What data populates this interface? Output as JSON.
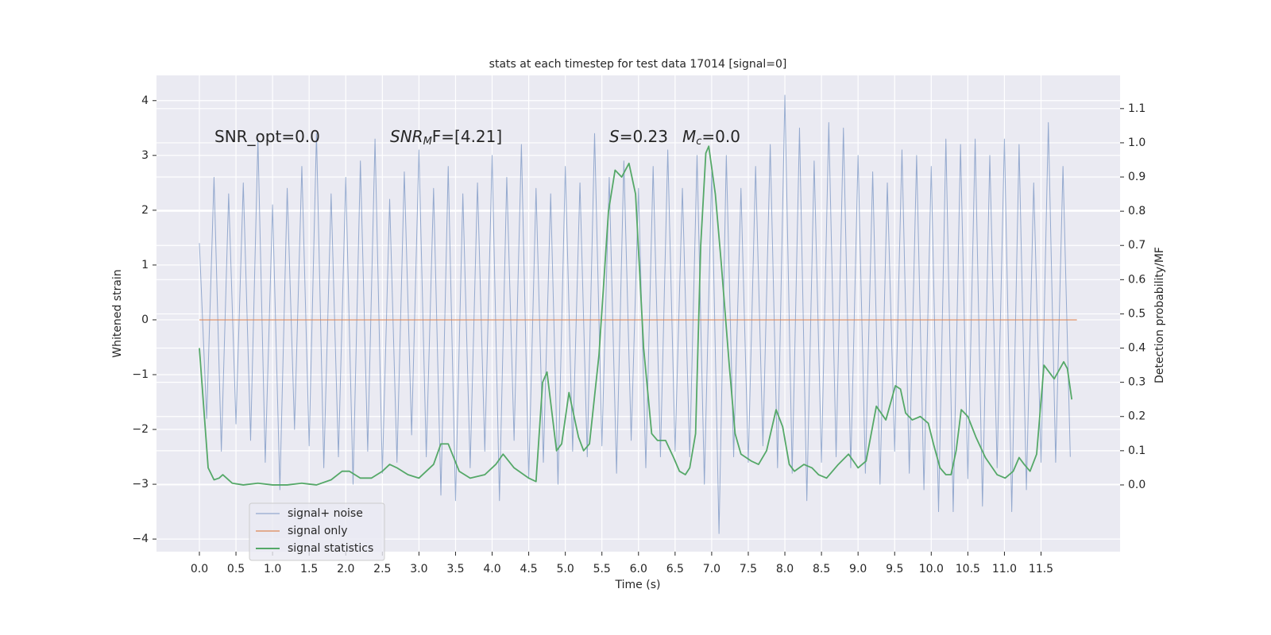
{
  "chart_data": {
    "type": "line",
    "title": "stats at each timestep for test data 17014 [signal=0]",
    "xlabel": "Time (s)",
    "ylabel": "Whitened strain",
    "y2label": "Detection probability/MF",
    "annotations": [
      {
        "rest": "SNR_opt=0.0"
      },
      {
        "base": "SNR",
        "sub": "M",
        "rest": "F=[4.21]"
      },
      {
        "base": "S",
        "rest": "=0.23"
      },
      {
        "base": "M",
        "sub": "c",
        "rest": "=0.0"
      }
    ],
    "grid": true,
    "legend": "lower left",
    "xlim": [
      -0.586,
      12.58
    ],
    "ylim": [
      -4.23,
      4.46
    ],
    "y2lim": [
      -0.195,
      1.197
    ],
    "xticks": [
      {
        "value": 0,
        "label": "0.0"
      },
      0.5,
      {
        "value": 1,
        "label": "1.0"
      },
      1.5,
      {
        "value": 2,
        "label": "2.0"
      },
      2.5,
      {
        "value": 3,
        "label": "3.0"
      },
      3.5,
      {
        "value": 4,
        "label": "4.0"
      },
      4.5,
      {
        "value": 5,
        "label": "5.0"
      },
      5.5,
      {
        "value": 6,
        "label": "6.0"
      },
      6.5,
      {
        "value": 7,
        "label": "7.0"
      },
      7.5,
      {
        "value": 8,
        "label": "8.0"
      },
      8.5,
      {
        "value": 9,
        "label": "9.0"
      },
      9.5,
      {
        "value": 10,
        "label": "10.0"
      },
      10.5,
      {
        "value": 11,
        "label": "11.0"
      },
      11.5
    ],
    "yticks": [
      {
        "value": -4,
        "label": "−4"
      },
      {
        "value": -3,
        "label": "−3"
      },
      {
        "value": -2,
        "label": "−2"
      },
      {
        "value": -1,
        "label": "−1"
      },
      0,
      1,
      2,
      3,
      4
    ],
    "y2ticks": [
      {
        "value": 0,
        "label": "0.0"
      },
      0.1,
      0.2,
      0.3,
      0.4,
      0.5,
      0.6,
      0.7,
      0.8,
      0.9,
      {
        "value": 1,
        "label": "1.0"
      },
      1.1
    ],
    "series": [
      {
        "name": "signal+ noise",
        "color": "#4c72b0",
        "x": [
          0,
          0.1,
          0.2,
          0.3,
          0.4,
          0.5,
          0.6,
          0.7,
          0.8,
          0.9,
          1,
          1.1,
          1.2,
          1.3,
          1.4,
          1.5,
          1.6,
          1.7,
          1.8,
          1.9,
          2,
          2.1,
          2.2,
          2.3,
          2.4,
          2.5,
          2.6,
          2.7,
          2.8,
          2.9,
          3,
          3.1,
          3.2,
          3.3,
          3.4,
          3.5,
          3.6,
          3.7,
          3.8,
          3.9,
          4,
          4.1,
          4.2,
          4.3,
          4.4,
          4.5,
          4.6,
          4.7,
          4.8,
          4.9,
          5,
          5.1,
          5.2,
          5.3,
          5.4,
          5.5,
          5.6,
          5.7,
          5.8,
          5.9,
          6,
          6.1,
          6.2,
          6.3,
          6.4,
          6.5,
          6.6,
          6.7,
          6.8,
          6.9,
          7,
          7.1,
          7.2,
          7.3,
          7.4,
          7.5,
          7.6,
          7.7,
          7.8,
          7.9,
          8,
          8.1,
          8.2,
          8.3,
          8.4,
          8.5,
          8.6,
          8.7,
          8.8,
          8.9,
          9,
          9.1,
          9.2,
          9.3,
          9.4,
          9.5,
          9.6,
          9.7,
          9.8,
          9.9,
          10,
          10.1,
          10.2,
          10.3,
          10.4,
          10.5,
          10.6,
          10.7,
          10.8,
          10.9,
          11,
          11.1,
          11.2,
          11.3,
          11.4,
          11.5,
          11.6,
          11.7,
          11.8,
          11.9
        ],
        "values": [
          1.4,
          -1.8,
          2.6,
          -2.4,
          2.3,
          -1.9,
          2.5,
          -2.2,
          3.3,
          -2.6,
          2.1,
          -3.1,
          2.4,
          -2.0,
          2.8,
          -2.3,
          3.4,
          -2.7,
          2.3,
          -2.5,
          2.6,
          -3.0,
          2.9,
          -2.4,
          3.3,
          -2.8,
          2.2,
          -2.6,
          2.7,
          -2.1,
          3.1,
          -2.5,
          2.4,
          -3.2,
          2.8,
          -3.3,
          2.3,
          -2.7,
          2.5,
          -2.4,
          3.0,
          -3.3,
          2.6,
          -2.2,
          3.2,
          -2.9,
          2.4,
          -2.6,
          2.3,
          -3.0,
          2.8,
          -2.4,
          2.5,
          -2.5,
          3.4,
          -2.3,
          2.6,
          -2.8,
          2.9,
          -2.2,
          2.4,
          -2.7,
          2.8,
          -2.5,
          3.1,
          -2.4,
          2.4,
          -2.5,
          3.0,
          -3.0,
          2.7,
          -3.9,
          3.0,
          -2.5,
          2.4,
          -2.6,
          2.8,
          -2.3,
          3.2,
          -2.7,
          4.1,
          -2.8,
          3.5,
          -3.3,
          2.9,
          -2.6,
          3.6,
          -2.5,
          3.5,
          -2.7,
          3.0,
          -2.8,
          2.7,
          -3.0,
          2.5,
          -2.4,
          3.1,
          -2.8,
          3.0,
          -3.1,
          2.8,
          -3.5,
          3.3,
          -3.5,
          3.2,
          -2.9,
          3.3,
          -3.4,
          3.0,
          -2.7,
          3.3,
          -3.5,
          3.2,
          -3.1,
          2.5,
          -2.6,
          3.6,
          -2.6,
          2.8,
          -2.5
        ]
      },
      {
        "name": "signal only",
        "color": "#dd8452",
        "x": [
          0,
          11.99
        ],
        "values": [
          0,
          0
        ]
      },
      {
        "name": "signal statistics",
        "color": "#55a868",
        "axis": "y2",
        "x": [
          0,
          0.12,
          0.2,
          0.27,
          0.32,
          0.45,
          0.6,
          0.8,
          1.0,
          1.2,
          1.4,
          1.6,
          1.8,
          1.95,
          2.05,
          2.2,
          2.35,
          2.5,
          2.6,
          2.7,
          2.85,
          3.0,
          3.1,
          3.2,
          3.3,
          3.4,
          3.55,
          3.7,
          3.9,
          4.05,
          4.15,
          4.3,
          4.5,
          4.6,
          4.69,
          4.75,
          4.88,
          4.95,
          5.05,
          5.18,
          5.25,
          5.33,
          5.46,
          5.59,
          5.68,
          5.77,
          5.87,
          5.96,
          6.07,
          6.18,
          6.26,
          6.37,
          6.48,
          6.56,
          6.64,
          6.7,
          6.78,
          6.85,
          6.92,
          6.96,
          7.05,
          7.13,
          7.24,
          7.32,
          7.4,
          7.54,
          7.64,
          7.75,
          7.88,
          7.97,
          8.06,
          8.13,
          8.26,
          8.37,
          8.46,
          8.57,
          8.73,
          8.87,
          9.0,
          9.11,
          9.25,
          9.38,
          9.51,
          9.58,
          9.65,
          9.74,
          9.85,
          9.96,
          10.03,
          10.12,
          10.2,
          10.27,
          10.34,
          10.41,
          10.5,
          10.61,
          10.74,
          10.9,
          11.01,
          11.12,
          11.2,
          11.27,
          11.35,
          11.44,
          11.54,
          11.68,
          11.81,
          11.86,
          11.92
        ],
        "values": [
          0.4,
          0.05,
          0.015,
          0.02,
          0.03,
          0.005,
          0.0,
          0.005,
          0.0,
          0.0,
          0.005,
          0.0,
          0.015,
          0.04,
          0.04,
          0.02,
          0.02,
          0.04,
          0.06,
          0.05,
          0.03,
          0.02,
          0.04,
          0.06,
          0.12,
          0.12,
          0.04,
          0.02,
          0.03,
          0.06,
          0.09,
          0.05,
          0.02,
          0.01,
          0.3,
          0.33,
          0.1,
          0.12,
          0.27,
          0.14,
          0.1,
          0.12,
          0.38,
          0.8,
          0.92,
          0.9,
          0.94,
          0.85,
          0.4,
          0.15,
          0.13,
          0.13,
          0.08,
          0.04,
          0.03,
          0.05,
          0.15,
          0.7,
          0.97,
          0.99,
          0.85,
          0.65,
          0.35,
          0.15,
          0.09,
          0.07,
          0.06,
          0.1,
          0.22,
          0.17,
          0.06,
          0.04,
          0.06,
          0.05,
          0.03,
          0.02,
          0.06,
          0.09,
          0.05,
          0.07,
          0.23,
          0.19,
          0.29,
          0.28,
          0.21,
          0.19,
          0.2,
          0.18,
          0.12,
          0.05,
          0.03,
          0.03,
          0.1,
          0.22,
          0.2,
          0.14,
          0.08,
          0.03,
          0.02,
          0.04,
          0.08,
          0.06,
          0.04,
          0.09,
          0.35,
          0.31,
          0.36,
          0.34,
          0.25
        ]
      }
    ]
  }
}
